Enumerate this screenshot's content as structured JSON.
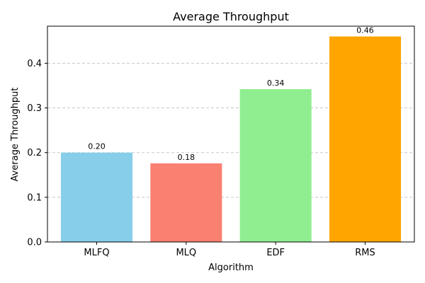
{
  "chart_data": {
    "type": "bar",
    "title": "Average Throughput",
    "xlabel": "Algorithm",
    "ylabel": "Average Throughput",
    "categories": [
      "MLFQ",
      "MLQ",
      "EDF",
      "RMS"
    ],
    "values": [
      0.2,
      0.176,
      0.342,
      0.46
    ],
    "value_labels": [
      "0.20",
      "0.18",
      "0.34",
      "0.46"
    ],
    "colors": [
      "#87CEEB",
      "#FA8072",
      "#90EE90",
      "#FFA500"
    ],
    "ylim": [
      0,
      0.483
    ],
    "yticks": [
      0.0,
      0.1,
      0.2,
      0.3,
      0.4
    ],
    "ytick_labels": [
      "0.0",
      "0.1",
      "0.2",
      "0.3",
      "0.4"
    ],
    "grid": {
      "axis": "y",
      "style": "dashed",
      "color": "#c8c8c8"
    }
  }
}
